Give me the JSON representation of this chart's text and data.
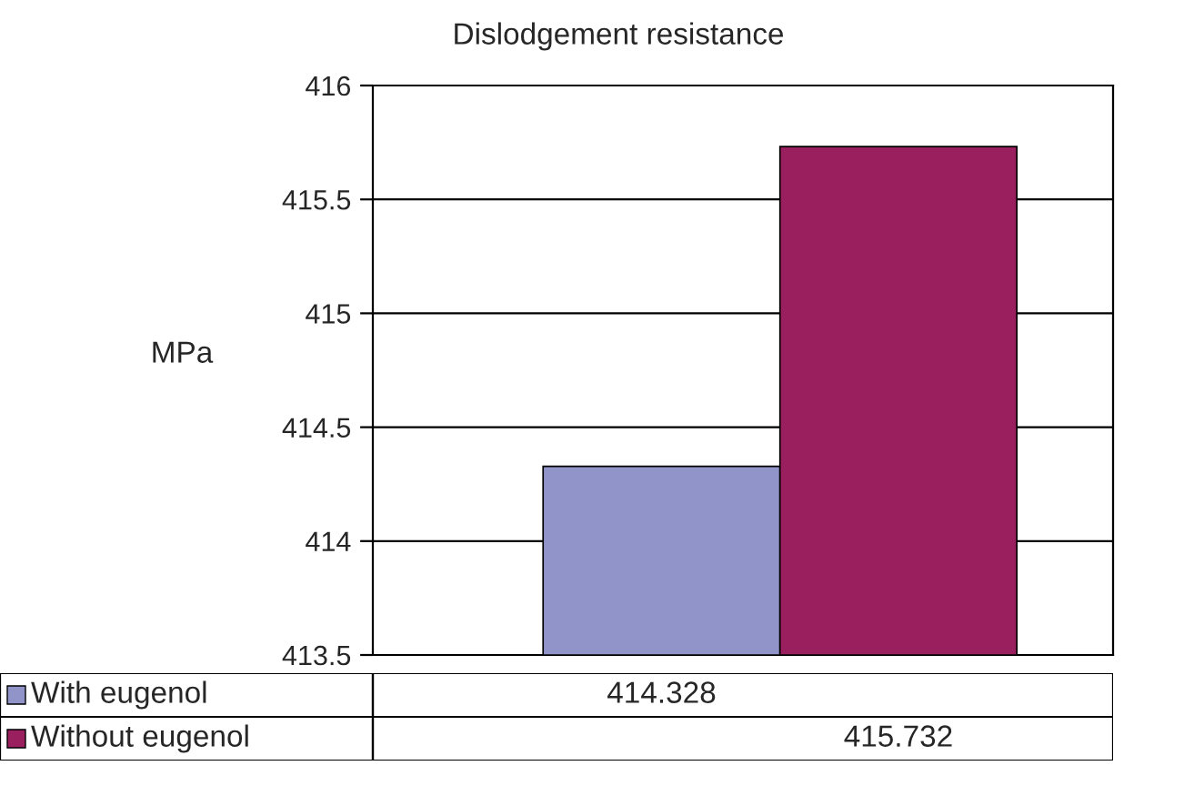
{
  "chart_data": {
    "type": "bar",
    "title": "Dislodgement resistance",
    "ylabel": "MPa",
    "categories": [
      null
    ],
    "series": [
      {
        "name": "With eugenol",
        "color": "#9194c8",
        "values": [
          414.328
        ]
      },
      {
        "name": "Without eugenol",
        "color": "#9a1f5e",
        "values": [
          415.732
        ]
      }
    ],
    "ylim": [
      413.5,
      416
    ],
    "yticks": [
      413.5,
      414,
      414.5,
      415,
      415.5,
      416
    ],
    "grid": "y",
    "data_labels": true,
    "legend": "bottom"
  }
}
